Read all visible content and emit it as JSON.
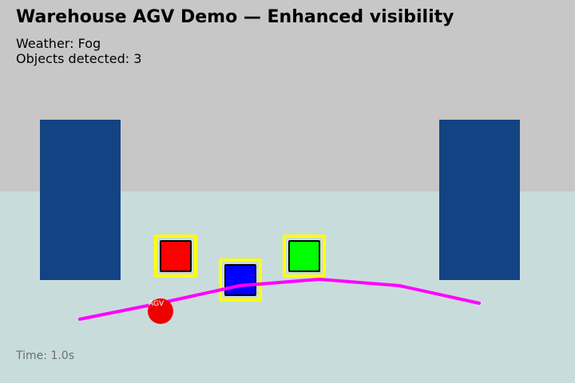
{
  "title": "Warehouse AGV Demo — Enhanced visibility",
  "status": {
    "weather_label": "Weather:",
    "weather_value": "Fog",
    "objects_label": "Objects detected:",
    "objects_value": "3",
    "time_label": "Time:",
    "time_value": "1.0s"
  },
  "agv": {
    "label": "AGV",
    "color": "#ee0000"
  },
  "colors": {
    "sky": "#c7c7c7",
    "floor": "#c9dcdc",
    "shelf": "#134383",
    "path": "#ff00ff",
    "detection_highlight": "#ffff00"
  },
  "objects": [
    {
      "name": "red-box",
      "color": "#ff0000",
      "detected": true
    },
    {
      "name": "blue-box",
      "color": "#0000ff",
      "detected": true
    },
    {
      "name": "green-box",
      "color": "#00ff00",
      "detected": true
    }
  ]
}
